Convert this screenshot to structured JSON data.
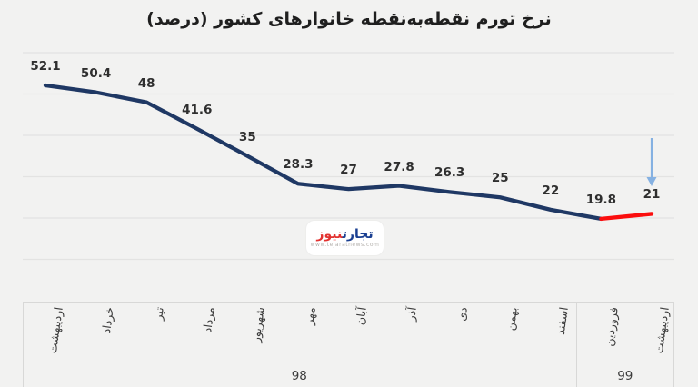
{
  "title": "نرخ تورم نقطه‌به‌نقطه خانوارهای کشور (درصد)",
  "chart_data": {
    "type": "line",
    "title": "نرخ تورم نقطه‌به‌نقطه خانوارهای کشور (درصد)",
    "categories": [
      "اردیبهشت",
      "خرداد",
      "تیر",
      "مرداد",
      "شهریور",
      "مهر",
      "آبان",
      "آذر",
      "دی",
      "بهمن",
      "اسفند",
      "فروردین",
      "اردیبهشت"
    ],
    "values": [
      52.1,
      50.4,
      48,
      41.6,
      35,
      28.3,
      27,
      27.8,
      26.3,
      25,
      22,
      19.8,
      21
    ],
    "value_labels": [
      "52.1",
      "50.4",
      "48",
      "41.6",
      "35",
      "28.3",
      "27",
      "27.8",
      "26.3",
      "25",
      "22",
      "19.8",
      "21"
    ],
    "year_groups": [
      {
        "label": "98",
        "start_index": 0,
        "end_index": 10
      },
      {
        "label": "99",
        "start_index": 11,
        "end_index": 12
      }
    ],
    "ylim": [
      0,
      60
    ],
    "grid_step": 10,
    "grid": true,
    "legend": false,
    "xlabel": "",
    "ylabel": "",
    "series": [
      {
        "name": "inflation-rate",
        "color_var": "--line-navy",
        "segment": [
          0,
          11
        ]
      },
      {
        "name": "inflation-rate-latest-highlight",
        "color_var": "--line-red",
        "segment": [
          11,
          12
        ]
      }
    ],
    "annotation": {
      "type": "down-arrow",
      "index": 12,
      "color_var": "--arrow-blue"
    }
  },
  "watermark": {
    "brand_word_blue": "تجارت",
    "brand_word_red": "نیوز",
    "url": "www.tejaratnews.com"
  },
  "colors": {
    "background": "#f2f2f1",
    "gridline": "#e3e3e2",
    "axis_border": "#d8d8d7",
    "title_text": "#1f1f1f",
    "value_label": "#2f2f2f",
    "axis_label": "#3c3c3c",
    "line_navy": "#1f3864",
    "line_red": "#fb0e0e",
    "arrow_blue": "#85b1e2",
    "logo_blue": "#1a3f91",
    "logo_red": "#e23230",
    "watermark_bg": "#ffffff",
    "url_gray": "#b5b2ae"
  }
}
